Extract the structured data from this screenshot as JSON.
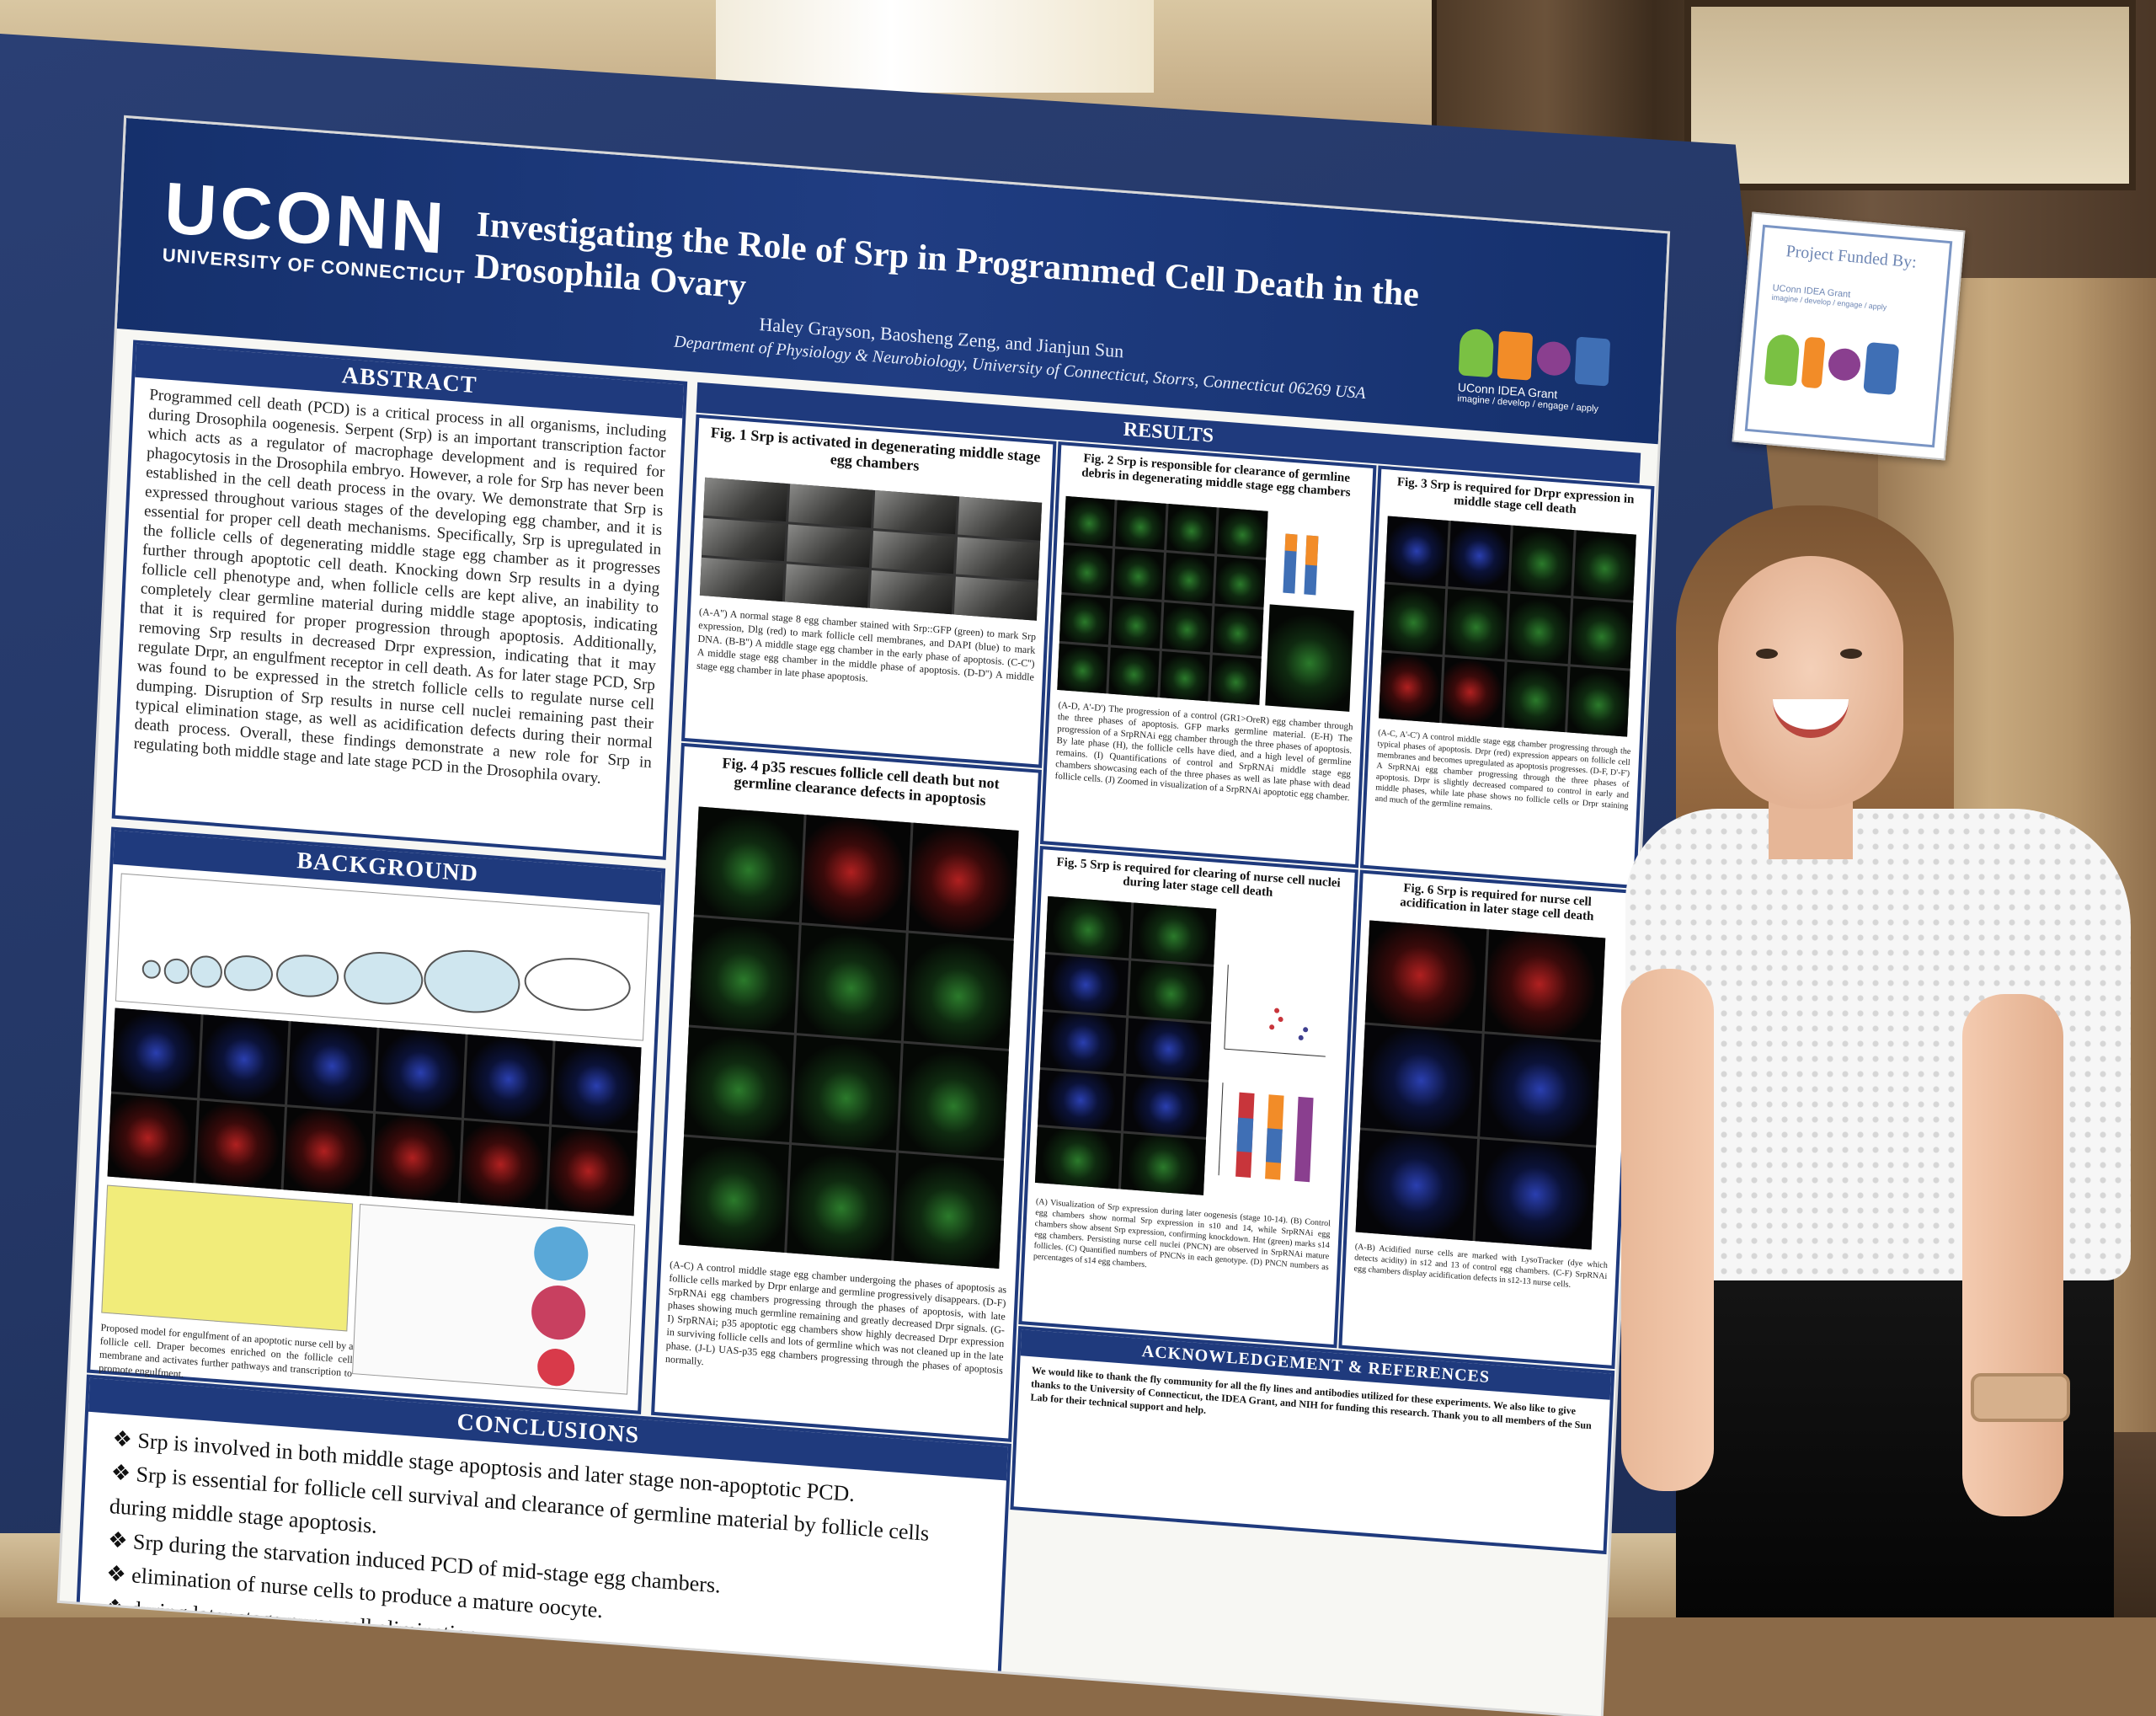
{
  "poster": {
    "logo_word": "UCONN",
    "logo_sub": "UNIVERSITY OF CONNECTICUT",
    "title": "Investigating the Role of Srp in Programmed Cell Death in the Drosophila Ovary",
    "authors": "Haley Grayson, Baosheng Zeng, and Jianjun Sun",
    "department": "Department of Physiology & Neurobiology, University of Connecticut, Storrs, Connecticut 06269 USA",
    "grant_name": "UConn IDEA Grant",
    "grant_tagline": "imagine / develop / engage / apply",
    "sections": {
      "abstract_title": "ABSTRACT",
      "abstract_text": "Programmed cell death (PCD) is a critical process in all organisms, including during Drosophila oogenesis. Serpent (Srp) is an important transcription factor which acts as a regulator of macrophage development and is required for phagocytosis in the Drosophila embryo. However, a role for Srp has never been established in the cell death process in the ovary. We demonstrate that Srp is expressed throughout various stages of the developing egg chamber, and it is essential for proper cell death mechanisms. Specifically, Srp is upregulated in the follicle cells of degenerating middle stage egg chamber as it progresses further through apoptotic cell death. Knocking down Srp results in a dying follicle cell phenotype and, when follicle cells are kept alive, an inability to completely clear germline material during middle stage apoptosis, indicating that it is required for proper progression through apoptosis. Additionally, removing Srp results in decreased Drpr expression, indicating that it may regulate Drpr, an engulfment receptor in cell death. As for later stage PCD, Srp was found to be expressed in the stretch follicle cells to regulate nurse cell dumping. Disruption of Srp results in nurse cell nuclei remaining past their typical elimination stage, as well as acidification defects during their normal death process. Overall, these findings demonstrate a new role for Srp in regulating both middle stage and late stage PCD in the Drosophila ovary.",
      "background_title": "BACKGROUND",
      "results_title": "RESULTS",
      "conclusions_title": "CONCLUSIONS",
      "ack_title": "ACKNOWLEDGEMENT & REFERENCES"
    },
    "figures": {
      "fig1_title": "Fig. 1 Srp is activated in degenerating middle stage egg chambers",
      "fig1_caption": "(A-A'') A normal stage 8 egg chamber stained with Srp::GFP (green) to mark Srp expression, Dlg (red) to mark follicle cell membranes, and DAPI (blue) to mark DNA. (B-B'') A middle stage egg chamber in the early phase of apoptosis. (C-C'') A middle stage egg chamber in the middle phase of apoptosis. (D-D'') A middle stage egg chamber in late phase apoptosis.",
      "fig2_title": "Fig. 2 Srp is responsible for clearance of germline debris in degenerating middle stage egg chambers",
      "fig2_caption": "(A-D, A'-D') The progression of a control (GR1>OreR) egg chamber through the three phases of apoptosis. GFP marks germline material. (E-H) The progression of a SrpRNAi egg chamber through the three phases of apoptosis. By late phase (H), the follicle cells have died, and a high level of germline remains. (I) Quantifications of control and SrpRNAi middle stage egg chambers showcasing each of the three phases as well as late phase with dead follicle cells. (J) Zoomed in visualization of a SrpRNAi apoptotic egg chamber.",
      "fig3_title": "Fig. 3 Srp is required for Drpr expression in middle stage cell death",
      "fig3_caption": "(A-C, A'-C') A control middle stage egg chamber progressing through the typical phases of apoptosis. Drpr (red) expression appears on follicle cell membranes and becomes upregulated as apoptosis progresses. (D-F, D'-F') A SrpRNAi egg chamber progressing through the three phases of apoptosis. Drpr is slightly decreased compared to control in early and middle phases, while late phase shows no follicle cells or Drpr staining and much of the germline remains.",
      "fig4_title": "Fig. 4 p35 rescues follicle cell death but not germline clearance defects in apoptosis",
      "fig4_caption": "(A-C) A control middle stage egg chamber undergoing the phases of apoptosis as follicle cells marked by Drpr enlarge and germline progressively disappears. (D-F) SrpRNAi egg chambers progressing through the phases of apoptosis, with late phases showing much germline remaining and greatly decreased Drpr signals. (G-I) SrpRNAi; p35 apoptotic egg chambers show highly decreased Drpr expression in surviving follicle cells and lots of germline which was not cleaned up in the late phase. (J-L) UAS-p35 egg chambers progressing through the phases of apoptosis normally.",
      "fig5_title": "Fig. 5 Srp is required for clearing of nurse cell nuclei during later stage cell death",
      "fig5_caption": "(A) Visualization of Srp expression during later oogenesis (stage 10-14). (B) Control egg chambers show normal Srp expression in s10 and 14, while SrpRNAi egg chambers show absent Srp expression, confirming knockdown. Hnt (green) marks s14 egg chambers. Persisting nurse cell nuclei (PNCN) are observed in SrpRNAi mature follicles. (C) Quantified numbers of PNCNs in each genotype. (D) PNCN numbers as percentages of s14 egg chambers.",
      "fig6_title": "Fig. 6 Srp is required for nurse cell acidification in later stage cell death",
      "fig6_caption": "(A-B) Acidified nurse cells are marked with LysoTracker (dye which detects acidity) in s12 and 13 of control egg chambers. (C-F) SrpRNAi egg chambers display acidification defects in s12-13 nurse cells."
    },
    "background_caption": "Proposed model for engulfment of an apoptotic nurse cell by a follicle cell. Draper becomes enriched on the follicle cell membrane and activates further pathways and transcription to promote engulfment.",
    "ack_text": "We would like to thank the fly community for all the fly lines and antibodies utilized for these experiments. We also like to give thanks to the University of Connecticut, the IDEA Grant, and NIH for funding this research. Thank you to all members of the Sun Lab for their technical support and help.",
    "conclusions": [
      "Srp is involved in both middle stage apoptosis and later stage non-apoptotic PCD.",
      "Srp is essential for follicle cell survival and clearance of germline material by follicle cells during middle stage apoptosis.",
      "Srp during the starvation induced PCD of mid-stage egg chambers.",
      "elimination of nurse cells to produce a mature oocyte.",
      "during later stage nurse cell elimination."
    ]
  },
  "funded_card": {
    "title": "Project Funded By:",
    "grant_name": "UConn IDEA Grant",
    "grant_tagline": "imagine / develop / engage / apply"
  },
  "colors": {
    "poster_blue": "#1f3a7d",
    "header_blue": "#15306c",
    "board_blue": "#243766",
    "grant_green": "#7ac143",
    "grant_orange": "#f28c28",
    "grant_purple": "#8a3f8f",
    "grant_blue": "#3f6fb5"
  }
}
